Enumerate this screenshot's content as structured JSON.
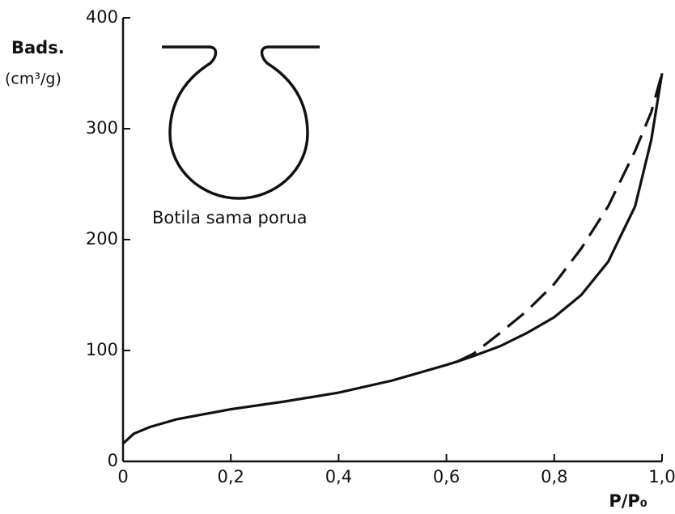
{
  "chart_data": {
    "type": "line",
    "ylabel": "Bads.",
    "yunits": "(cm³/g)",
    "xlabel": "P/P₀",
    "annotation": "Botila sama porua",
    "x": [
      0,
      0.02,
      0.05,
      0.1,
      0.2,
      0.3,
      0.4,
      0.5,
      0.6,
      0.62,
      0.65,
      0.7,
      0.75,
      0.8,
      0.85,
      0.9,
      0.95,
      0.98,
      1.0
    ],
    "series": [
      {
        "color": "#111111",
        "dash": false,
        "values": [
          16,
          25,
          31,
          38,
          47,
          54,
          62,
          73,
          87,
          90,
          95,
          104,
          116,
          130,
          150,
          180,
          230,
          290,
          350
        ]
      },
      {
        "color": "#111111",
        "dash": true,
        "values": [
          null,
          null,
          null,
          null,
          null,
          null,
          null,
          null,
          null,
          90,
          97,
          116,
          136,
          160,
          192,
          230,
          280,
          315,
          350
        ]
      }
    ],
    "xlim": [
      0,
      1.0
    ],
    "ylim": [
      0,
      400
    ],
    "xticks": [
      0,
      {
        "value": 0.2,
        "label": "0,2"
      },
      {
        "value": 0.4,
        "label": "0,4"
      },
      {
        "value": 0.6,
        "label": "0,6"
      },
      {
        "value": 0.8,
        "label": "0,8"
      },
      {
        "value": 1.0,
        "label": "1,0"
      }
    ],
    "yticks": [
      0,
      100,
      200,
      300,
      400
    ]
  }
}
